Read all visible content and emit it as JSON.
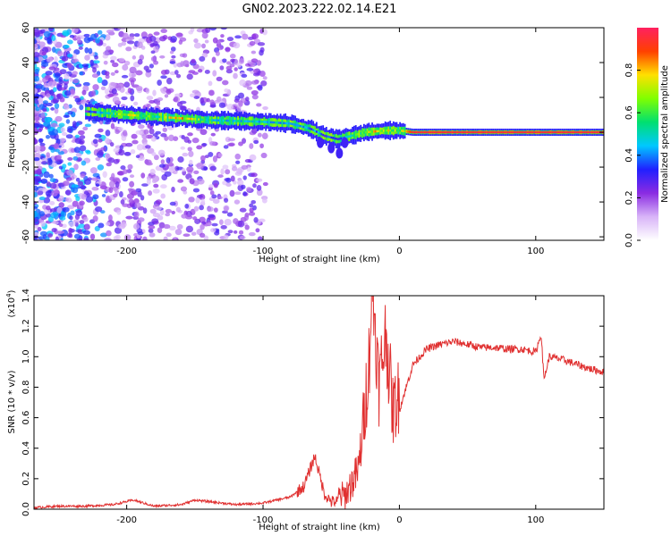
{
  "title": "GN02.2023.222.02.14.E21",
  "chart_data": [
    {
      "type": "heatmap",
      "xlabel": "Height of straight line (km)",
      "ylabel": "Frequency (Hz)",
      "xlim": [
        -268,
        150
      ],
      "ylim": [
        -62,
        60
      ],
      "x_ticks": [
        -200,
        -100,
        0,
        100
      ],
      "x_tick_labels": [
        "-200",
        "-100",
        "0",
        "100"
      ],
      "y_ticks": [
        -60,
        -40,
        -20,
        0,
        20,
        40,
        60
      ],
      "y_tick_labels": [
        "-60",
        "-40",
        "-20",
        "0",
        "20",
        "40",
        "60"
      ],
      "colorbar": {
        "label": "Normalized spectral amplitude",
        "range": [
          0,
          1
        ],
        "ticks": [
          0,
          0.2,
          0.4,
          0.6,
          0.8
        ],
        "tick_labels": [
          "0.0",
          "0.2",
          "0.4",
          "0.6",
          "0.8"
        ],
        "colors": [
          "#ffffff",
          "#d8b4f8",
          "#8a2be2",
          "#2020ff",
          "#00c8ff",
          "#00e070",
          "#80ff00",
          "#ffe000",
          "#ff4000",
          "#ff2060"
        ]
      },
      "ridge": [
        {
          "x": -230,
          "freq": 12,
          "amp": 0.3
        },
        {
          "x": -215,
          "freq": 11,
          "amp": 0.55
        },
        {
          "x": -200,
          "freq": 10,
          "amp": 0.8
        },
        {
          "x": -180,
          "freq": 9,
          "amp": 0.6
        },
        {
          "x": -160,
          "freq": 8,
          "amp": 0.9
        },
        {
          "x": -140,
          "freq": 7,
          "amp": 0.6
        },
        {
          "x": -120,
          "freq": 6.5,
          "amp": 0.55
        },
        {
          "x": -100,
          "freq": 6,
          "amp": 0.55
        },
        {
          "x": -80,
          "freq": 5,
          "amp": 0.5
        },
        {
          "x": -65,
          "freq": 2,
          "amp": 0.45
        },
        {
          "x": -55,
          "freq": -2,
          "amp": 0.4
        },
        {
          "x": -45,
          "freq": -4,
          "amp": 0.35
        },
        {
          "x": -35,
          "freq": -2,
          "amp": 0.55
        },
        {
          "x": -25,
          "freq": 0,
          "amp": 0.8
        },
        {
          "x": -10,
          "freq": 1,
          "amp": 0.85
        },
        {
          "x": 0,
          "freq": 1,
          "amp": 0.7
        },
        {
          "x": 10,
          "freq": 0,
          "amp": 0.95
        },
        {
          "x": 50,
          "freq": 0,
          "amp": 0.95
        },
        {
          "x": 100,
          "freq": 0,
          "amp": 0.95
        },
        {
          "x": 150,
          "freq": 0,
          "amp": 0.95
        }
      ]
    },
    {
      "type": "line",
      "xlabel": "Height of straight line (km)",
      "ylabel": "SNR (10 * v/v)",
      "y_multiplier": "(x10",
      "y_multiplier_exp": "4",
      "y_multiplier_close": ")",
      "xlim": [
        -268,
        150
      ],
      "ylim": [
        0,
        1.4
      ],
      "x_ticks": [
        -200,
        -100,
        0,
        100
      ],
      "x_tick_labels": [
        "-200",
        "-100",
        "0",
        "100"
      ],
      "y_ticks": [
        0,
        0.2,
        0.4,
        0.6,
        0.8,
        1.0,
        1.2,
        1.4
      ],
      "y_tick_labels": [
        "0.0",
        "0.2",
        "0.4",
        "0.6",
        "0.8",
        "1.0",
        "1.2",
        "1.4"
      ],
      "color": "#e03030",
      "series": [
        {
          "x": [
            -268,
            -250,
            -230,
            -210,
            -195,
            -180,
            -160,
            -150,
            -140,
            -120,
            -100,
            -90,
            -80,
            -70,
            -62,
            -55,
            -50,
            -40,
            -30,
            -25,
            -22,
            -20,
            -15,
            -10,
            -5,
            0,
            5,
            10,
            20,
            30,
            40,
            50,
            60,
            70,
            80,
            90,
            100,
            104,
            106,
            110,
            120,
            130,
            140,
            150
          ],
          "y": [
            0.01,
            0.02,
            0.02,
            0.03,
            0.06,
            0.02,
            0.03,
            0.06,
            0.05,
            0.03,
            0.04,
            0.06,
            0.08,
            0.15,
            0.35,
            0.1,
            0.05,
            0.05,
            0.2,
            0.6,
            0.9,
            1.4,
            0.7,
            1.05,
            0.55,
            0.65,
            0.8,
            0.95,
            1.05,
            1.08,
            1.1,
            1.08,
            1.06,
            1.06,
            1.05,
            1.05,
            1.03,
            1.15,
            0.85,
            1.0,
            0.98,
            0.95,
            0.92,
            0.9
          ]
        }
      ]
    }
  ]
}
